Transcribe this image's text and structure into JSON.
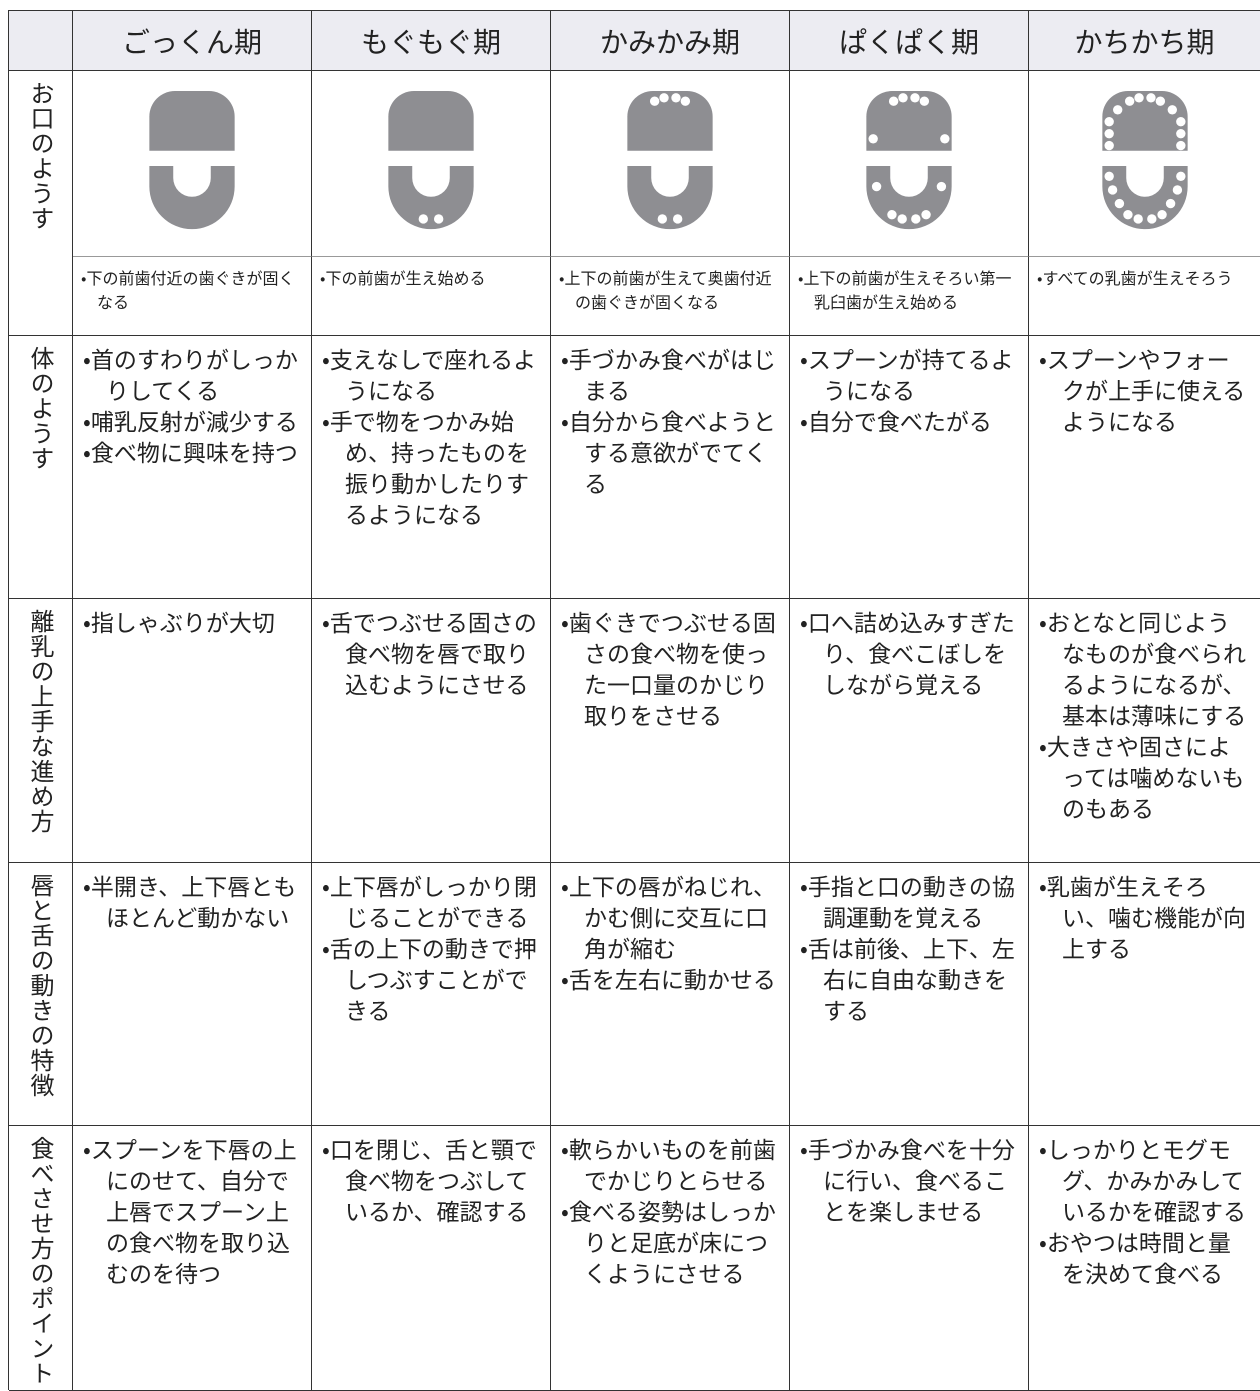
{
  "table": {
    "columns": [
      "ごっくん期",
      "もぐもぐ期",
      "かみかみ期",
      "ぱくぱく期",
      "かちかち期"
    ],
    "mouth": {
      "label": "お口のようす",
      "cells": [
        [
          "・下の前歯付近の歯ぐきが固くなる"
        ],
        [
          "・下の前歯が生え始める"
        ],
        [
          "・上下の前歯が生えて奥歯付近の歯ぐきが固くなる"
        ],
        [
          "・上下の前歯が生えそろい第一乳臼歯が生え始める"
        ],
        [
          "・すべての乳歯が生えそろう"
        ]
      ]
    },
    "rows": [
      {
        "label": "体のようす",
        "cells": [
          [
            "・首のすわりがしっかりしてくる",
            "・哺乳反射が減少する",
            "・食べ物に興味を持つ"
          ],
          [
            "・支えなしで座れるようになる",
            "・手で物をつかみ始め、持ったものを振り動かしたりするようになる"
          ],
          [
            "・手づかみ食べがはじまる",
            "・自分から食べようとする意欲がでてくる"
          ],
          [
            "・スプーンが持てるようになる",
            "・自分で食べたがる"
          ],
          [
            "・スプーンやフォークが上手に使えるようになる"
          ]
        ]
      },
      {
        "label": "離乳の上手な進め方",
        "cells": [
          [
            "・指しゃぶりが大切"
          ],
          [
            "・舌でつぶせる固さの食べ物を唇で取り込むようにさせる"
          ],
          [
            "・歯ぐきでつぶせる固さの食べ物を使った一口量のかじり取りをさせる"
          ],
          [
            "・口へ詰め込みすぎたり、食べこぼしをしながら覚える"
          ],
          [
            "・おとなと同じようなものが食べられるようになるが、基本は薄味にする",
            "・大きさや固さによっては噛めないものもある"
          ]
        ]
      },
      {
        "label": "唇と舌の動きの特徴",
        "cells": [
          [
            "・半開き、上下唇ともほとんど動かない"
          ],
          [
            "・上下唇がしっかり閉じることができる",
            "・舌の上下の動きで押しつぶすことができる"
          ],
          [
            "・上下の唇がねじれ、かむ側に交互に口角が縮む",
            "・舌を左右に動かせる"
          ],
          [
            "・手指と口の動きの協調運動を覚える",
            "・舌は前後、上下、左右に自由な動きをする"
          ],
          [
            "・乳歯が生えそろい、噛む機能が向上する"
          ]
        ]
      },
      {
        "label": "食べさせ方のポイント",
        "cells": [
          [
            "・スプーンを下唇の上にのせて、自分で上唇でスプーン上の食べ物を取り込むのを待つ"
          ],
          [
            "・口を閉じ、舌と顎で食べ物をつぶしているか、確認する"
          ],
          [
            "・軟らかいものを前歯でかじりとらせる",
            "・食べる姿勢はしっかりと足底が床につくようにさせる"
          ],
          [
            "・手づかみ食べを十分に行い、食べることを楽しませる"
          ],
          [
            "・しっかりとモグモグ、かみかみしているかを確認する",
            "・おやつは時間と量を決めて食べる"
          ]
        ]
      }
    ]
  }
}
